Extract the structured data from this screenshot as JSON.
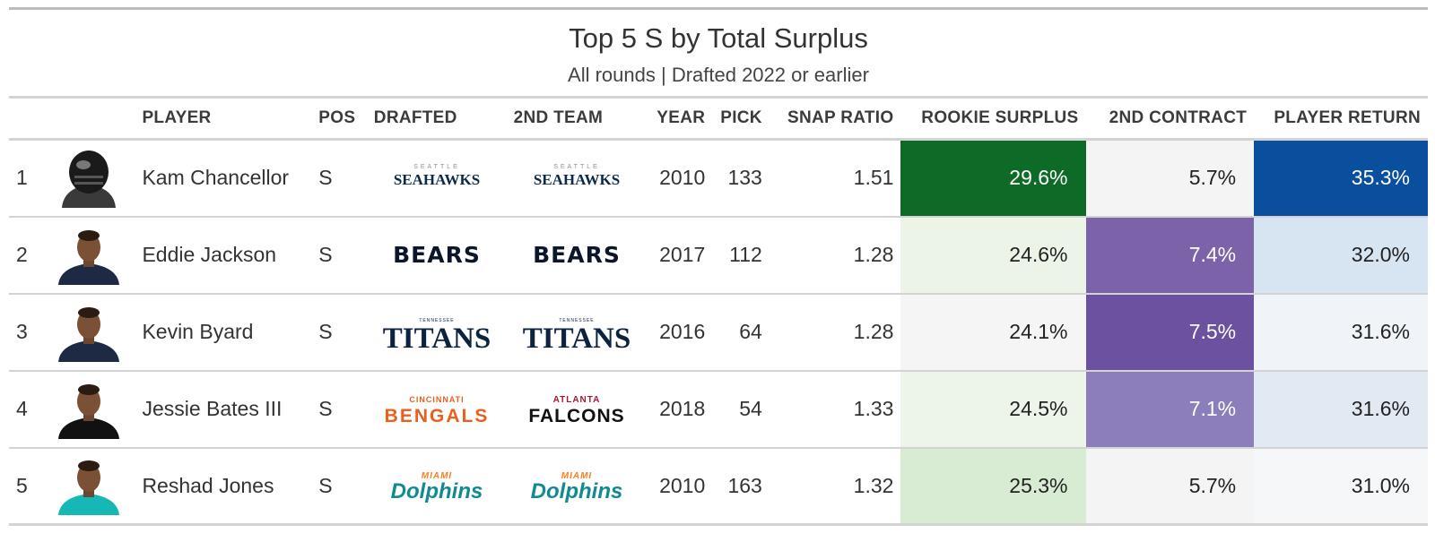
{
  "header": {
    "title": "Top 5 S by Total Surplus",
    "subtitle": "All rounds | Drafted 2022 or earlier"
  },
  "columns": [
    "",
    "",
    "PLAYER",
    "POS",
    "DRAFTED",
    "2ND TEAM",
    "YEAR",
    "PICK",
    "SNAP RATIO",
    "ROOKIE SURPLUS",
    "2ND CONTRACT",
    "PLAYER RETURN"
  ],
  "rows": [
    {
      "rank": "1",
      "player": "Kam Chancellor",
      "pos": "S",
      "drafted": "SEAHAWKS",
      "drafted_top": "SEATTLE",
      "drafted_style": "seahawks",
      "second": "SEAHAWKS",
      "second_top": "SEATTLE",
      "second_style": "seahawks",
      "year": "2010",
      "pick": "133",
      "snap_ratio": "1.51",
      "rookie_surplus": "29.6%",
      "second_contract": "5.7%",
      "player_return": "35.3%",
      "avatar": "helmet"
    },
    {
      "rank": "2",
      "player": "Eddie Jackson",
      "pos": "S",
      "drafted": "BEARS",
      "drafted_top": "",
      "drafted_style": "bears",
      "second": "BEARS",
      "second_top": "",
      "second_style": "bears",
      "year": "2017",
      "pick": "112",
      "snap_ratio": "1.28",
      "rookie_surplus": "24.6%",
      "second_contract": "7.4%",
      "player_return": "32.0%",
      "avatar": "navy"
    },
    {
      "rank": "3",
      "player": "Kevin Byard",
      "pos": "S",
      "drafted": "TITANS",
      "drafted_top": "TENNESSEE",
      "drafted_style": "titans",
      "second": "TITANS",
      "second_top": "TENNESSEE",
      "second_style": "titans",
      "year": "2016",
      "pick": "64",
      "snap_ratio": "1.28",
      "rookie_surplus": "24.1%",
      "second_contract": "7.5%",
      "player_return": "31.6%",
      "avatar": "navy"
    },
    {
      "rank": "4",
      "player": "Jessie Bates III",
      "pos": "S",
      "drafted": "BENGALS",
      "drafted_top": "CINCINNATI",
      "drafted_style": "bengals",
      "second": "FALCONS",
      "second_top": "ATLANTA",
      "second_style": "falcons",
      "year": "2018",
      "pick": "54",
      "snap_ratio": "1.33",
      "rookie_surplus": "24.5%",
      "second_contract": "7.1%",
      "player_return": "31.6%",
      "avatar": "black"
    },
    {
      "rank": "5",
      "player": "Reshad Jones",
      "pos": "S",
      "drafted": "Dolphins",
      "drafted_top": "MIAMI",
      "drafted_style": "dolphins",
      "second": "Dolphins",
      "second_top": "MIAMI",
      "second_style": "dolphins",
      "year": "2010",
      "pick": "163",
      "snap_ratio": "1.32",
      "rookie_surplus": "25.3%",
      "second_contract": "5.7%",
      "player_return": "31.0%",
      "avatar": "teal"
    }
  ],
  "colors": {
    "rookie_surplus": [
      "#0e6b27",
      "#ecf4e8",
      "#f4f5f4",
      "#edf4ea",
      "#d8ecd3"
    ],
    "second_contract": [
      "#f4f4f4",
      "#7c62a9",
      "#6b519f",
      "#8c7ebb",
      "#f4f4f4"
    ],
    "player_return": [
      "#0a4f9d",
      "#d7e4f1",
      "#f0f3f8",
      "#e1e9f3",
      "#f6f7f9"
    ],
    "rookie_surplus_text": [
      "#ffffff",
      "#222222",
      "#222222",
      "#222222",
      "#222222"
    ],
    "second_contract_text": [
      "#222222",
      "#ffffff",
      "#ffffff",
      "#ffffff",
      "#222222"
    ],
    "player_return_text": [
      "#ffffff",
      "#222222",
      "#222222",
      "#222222",
      "#222222"
    ]
  },
  "chart_data": {
    "type": "table",
    "title": "Top 5 S by Total Surplus",
    "subtitle": "All rounds | Drafted 2022 or earlier",
    "columns": [
      "PLAYER",
      "POS",
      "DRAFTED",
      "2ND TEAM",
      "YEAR",
      "PICK",
      "SNAP RATIO",
      "ROOKIE SURPLUS",
      "2ND CONTRACT",
      "PLAYER RETURN"
    ],
    "rows": [
      [
        "Kam Chancellor",
        "S",
        "Seahawks",
        "Seahawks",
        2010,
        133,
        1.51,
        29.6,
        5.7,
        35.3
      ],
      [
        "Eddie Jackson",
        "S",
        "Bears",
        "Bears",
        2017,
        112,
        1.28,
        24.6,
        7.4,
        32.0
      ],
      [
        "Kevin Byard",
        "S",
        "Titans",
        "Titans",
        2016,
        64,
        1.28,
        24.1,
        7.5,
        31.6
      ],
      [
        "Jessie Bates III",
        "S",
        "Bengals",
        "Falcons",
        2018,
        54,
        1.33,
        24.5,
        7.1,
        31.6
      ],
      [
        "Reshad Jones",
        "S",
        "Dolphins",
        "Dolphins",
        2010,
        163,
        1.32,
        25.3,
        5.7,
        31.0
      ]
    ]
  }
}
